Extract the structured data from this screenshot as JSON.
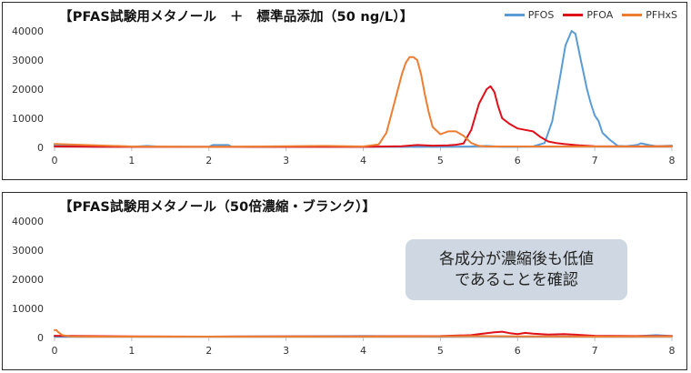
{
  "panels": {
    "top": {
      "title": "【PFAS試験用メタノール　＋　標準品添加（50 ng/L）】"
    },
    "bottom": {
      "title": "【PFAS試験用メタノール（50倍濃縮・ブランク）】"
    }
  },
  "callout": {
    "line1": "各成分が濃縮後も低値",
    "line2": "であることを確認"
  },
  "legend": [
    {
      "name": "PFOS",
      "color": "#5b9bd5"
    },
    {
      "name": "PFOA",
      "color": "#e0101a"
    },
    {
      "name": "PFHxS",
      "color": "#ed7d31"
    }
  ],
  "chart_data": [
    {
      "type": "line",
      "title": "【PFAS試験用メタノール　＋　標準品添加（50 ng/L）】",
      "xlabel": "",
      "ylabel": "",
      "xlim": [
        0,
        8
      ],
      "ylim": [
        0,
        40000
      ],
      "x_ticks": [
        "0",
        "1",
        "2",
        "3",
        "4",
        "5",
        "6",
        "7",
        "8"
      ],
      "y_ticks": [
        "0",
        "10000",
        "20000",
        "30000",
        "40000"
      ],
      "grid": false,
      "legend_position": "top-right",
      "series": [
        {
          "name": "PFOS",
          "color": "#5b9bd5",
          "x": [
            0,
            0.5,
            1,
            1.2,
            1.4,
            2,
            2.05,
            2.25,
            2.3,
            3,
            4,
            5,
            5.4,
            5.6,
            5.8,
            6,
            6.2,
            6.35,
            6.45,
            6.55,
            6.62,
            6.7,
            6.75,
            6.82,
            6.9,
            6.95,
            7.0,
            7.05,
            7.1,
            7.2,
            7.3,
            7.4,
            7.55,
            7.6,
            7.7,
            7.8,
            8
          ],
          "y": [
            800,
            200,
            200,
            500,
            200,
            200,
            800,
            800,
            200,
            200,
            200,
            200,
            300,
            500,
            200,
            200,
            300,
            1500,
            9000,
            24000,
            35000,
            40000,
            39000,
            30000,
            20000,
            15000,
            11000,
            9000,
            5000,
            2500,
            500,
            400,
            800,
            1400,
            800,
            400,
            600
          ]
        },
        {
          "name": "PFOA",
          "color": "#e0101a",
          "x": [
            0,
            1,
            2,
            3,
            3.5,
            4,
            4.3,
            4.5,
            4.7,
            4.9,
            5.1,
            5.2,
            5.3,
            5.4,
            5.5,
            5.6,
            5.65,
            5.7,
            5.75,
            5.8,
            5.9,
            6.0,
            6.1,
            6.2,
            6.3,
            6.4,
            6.5,
            6.6,
            6.8,
            7,
            7.5,
            8
          ],
          "y": [
            300,
            200,
            200,
            200,
            200,
            200,
            300,
            400,
            800,
            600,
            700,
            900,
            1300,
            6000,
            15000,
            20000,
            21000,
            19000,
            14000,
            10000,
            8000,
            6500,
            6000,
            5500,
            3500,
            2000,
            1500,
            1200,
            700,
            400,
            300,
            400
          ]
        },
        {
          "name": "PFHxS",
          "color": "#ed7d31",
          "x": [
            0,
            1,
            2,
            3,
            3.5,
            4,
            4.2,
            4.3,
            4.4,
            4.5,
            4.55,
            4.6,
            4.65,
            4.7,
            4.75,
            4.8,
            4.85,
            4.9,
            5.0,
            5.05,
            5.1,
            5.2,
            5.3,
            5.4,
            5.5,
            5.6,
            6,
            7,
            8
          ],
          "y": [
            1200,
            300,
            200,
            400,
            500,
            300,
            1000,
            5000,
            15000,
            25000,
            29000,
            31000,
            31000,
            30000,
            25000,
            18000,
            12000,
            7000,
            4500,
            5000,
            5500,
            5500,
            4000,
            1500,
            500,
            300,
            300,
            300,
            400
          ]
        }
      ]
    },
    {
      "type": "line",
      "title": "【PFAS試験用メタノール（50倍濃縮・ブランク）】",
      "xlabel": "",
      "ylabel": "",
      "xlim": [
        0,
        8
      ],
      "ylim": [
        0,
        40000
      ],
      "x_ticks": [
        "0",
        "1",
        "2",
        "3",
        "4",
        "5",
        "6",
        "7",
        "8"
      ],
      "y_ticks": [
        "0",
        "10000",
        "20000",
        "30000",
        "40000"
      ],
      "grid": false,
      "series": [
        {
          "name": "PFOS",
          "color": "#5b9bd5",
          "x": [
            0,
            1,
            2,
            3,
            4,
            5,
            5.5,
            6,
            6.5,
            7,
            7.5,
            7.8,
            8
          ],
          "y": [
            300,
            300,
            300,
            400,
            500,
            300,
            500,
            300,
            400,
            300,
            400,
            800,
            500
          ]
        },
        {
          "name": "PFOA",
          "color": "#e0101a",
          "x": [
            0,
            1,
            2,
            3,
            4,
            5,
            5.4,
            5.5,
            5.7,
            5.8,
            5.9,
            6.0,
            6.1,
            6.2,
            6.4,
            6.6,
            6.8,
            7,
            7.5,
            8
          ],
          "y": [
            600,
            400,
            300,
            400,
            400,
            500,
            800,
            1200,
            1800,
            2000,
            1500,
            1200,
            1600,
            1300,
            1000,
            1200,
            900,
            600,
            500,
            500
          ]
        },
        {
          "name": "PFHxS",
          "color": "#ed7d31",
          "x": [
            0,
            0.02,
            0.05,
            0.1,
            0.2,
            0.5,
            1,
            2,
            3,
            4,
            5,
            5.5,
            6,
            7,
            8
          ],
          "y": [
            2500,
            2600,
            1800,
            800,
            400,
            300,
            300,
            300,
            300,
            300,
            400,
            500,
            400,
            300,
            400
          ]
        }
      ]
    }
  ]
}
